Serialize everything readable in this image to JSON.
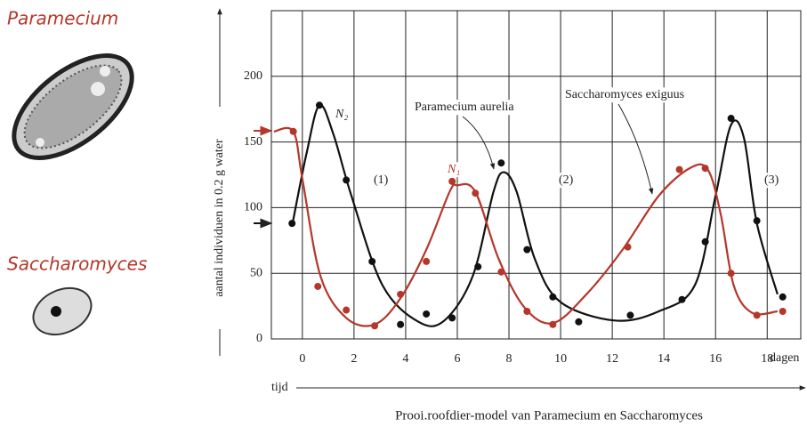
{
  "chart_data": {
    "type": "scatter-curve",
    "side_labels": [
      "Paramecium",
      "Saccharomyces"
    ],
    "y_label": "aantal individuen in 0.2 g water",
    "x_label": "tijd",
    "x_unit": "dagen",
    "caption": "Prooi.roofdier-model van Paramecium en Saccharomyces",
    "xlim": [
      -1.2,
      19.3
    ],
    "xticks": [
      0,
      2,
      4,
      6,
      8,
      10,
      12,
      14,
      16,
      18
    ],
    "ylim": [
      0,
      250
    ],
    "yticks": [
      0,
      50,
      100,
      150,
      200
    ],
    "grid": true,
    "annotations": [
      "N₂",
      "N₁",
      "(1)",
      "(2)",
      "(3)",
      "Paramecium aurelia",
      "Saccharomyces exiguus"
    ],
    "series": [
      {
        "name": "Paramecium aurelia",
        "color": "#111111",
        "x": [
          -0.4,
          0.66,
          1.7,
          2.7,
          3.8,
          4.8,
          5.8,
          6.8,
          7.7,
          8.7,
          9.7,
          10.7,
          12.7,
          14.7,
          15.6,
          16.6,
          17.6,
          18.6
        ],
        "values": [
          88,
          178,
          121,
          59,
          11,
          19,
          16,
          55,
          134,
          68,
          32,
          13,
          18,
          30,
          74,
          168,
          90,
          32
        ],
        "curve_x": [
          -0.38,
          0.17,
          0.66,
          1.2,
          1.9,
          3.1,
          4.5,
          5.5,
          6.6,
          7.4,
          7.8,
          8.3,
          9,
          10,
          12.1,
          13.8,
          15.2,
          16,
          16.6,
          17.1,
          17.6,
          18.4
        ],
        "curve_values": [
          88,
          142,
          178,
          156,
          109,
          41,
          13,
          14,
          48,
          112,
          127,
          112,
          61,
          28,
          14,
          21,
          41,
          109,
          163,
          153,
          88,
          34
        ]
      },
      {
        "name": "Saccharomyces exiguus",
        "color": "#b5372a",
        "x": [
          -0.35,
          0.6,
          1.7,
          2.8,
          3.8,
          4.8,
          5.8,
          6.7,
          7.7,
          8.7,
          9.7,
          12.6,
          14.6,
          15.6,
          16.6,
          17.6,
          18.6
        ],
        "values": [
          158,
          40,
          22,
          10,
          34,
          59,
          120,
          111,
          51,
          21,
          11,
          70,
          129,
          130,
          50,
          18,
          21
        ],
        "curve_x": [
          -1.1,
          -0.35,
          0,
          0.7,
          1.7,
          2.8,
          3.8,
          4.8,
          5.7,
          6,
          6.7,
          7.6,
          8.6,
          9.7,
          11,
          12.4,
          13.8,
          15,
          15.7,
          16.2,
          16.7,
          17.4,
          18.4
        ],
        "curve_values": [
          158,
          158,
          122,
          48,
          16,
          11,
          31,
          68,
          112,
          117,
          112,
          61,
          24,
          12,
          34,
          68,
          109,
          130,
          129,
          95,
          41,
          20,
          21
        ]
      }
    ]
  }
}
